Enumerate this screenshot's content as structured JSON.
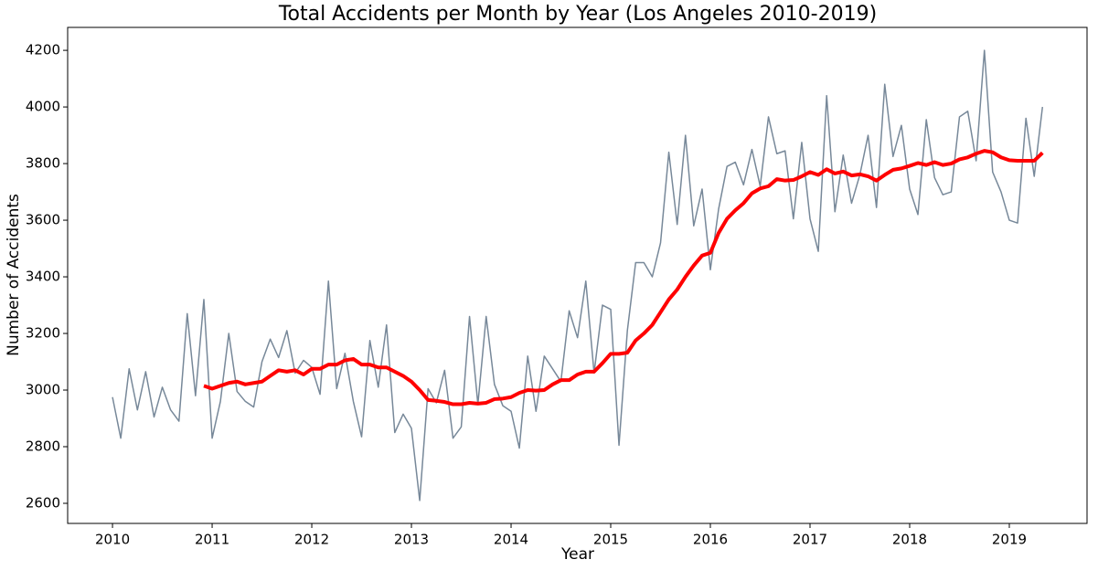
{
  "chart_data": {
    "type": "line",
    "title": "Total Accidents per Month by Year (Los Angeles 2010-2019)",
    "xlabel": "Year",
    "ylabel": "Number of Accidents",
    "x": [
      2010,
      2010.083,
      2010.167,
      2010.25,
      2010.333,
      2010.417,
      2010.5,
      2010.583,
      2010.667,
      2010.75,
      2010.833,
      2010.917,
      2011,
      2011.083,
      2011.167,
      2011.25,
      2011.333,
      2011.417,
      2011.5,
      2011.583,
      2011.667,
      2011.75,
      2011.833,
      2011.917,
      2012,
      2012.083,
      2012.167,
      2012.25,
      2012.333,
      2012.417,
      2012.5,
      2012.583,
      2012.667,
      2012.75,
      2012.833,
      2012.917,
      2013,
      2013.083,
      2013.167,
      2013.25,
      2013.333,
      2013.417,
      2013.5,
      2013.583,
      2013.667,
      2013.75,
      2013.833,
      2013.917,
      2014,
      2014.083,
      2014.167,
      2014.25,
      2014.333,
      2014.417,
      2014.5,
      2014.583,
      2014.667,
      2014.75,
      2014.833,
      2014.917,
      2015,
      2015.083,
      2015.167,
      2015.25,
      2015.333,
      2015.417,
      2015.5,
      2015.583,
      2015.667,
      2015.75,
      2015.833,
      2015.917,
      2016,
      2016.083,
      2016.167,
      2016.25,
      2016.333,
      2016.417,
      2016.5,
      2016.583,
      2016.667,
      2016.75,
      2016.833,
      2016.917,
      2017,
      2017.083,
      2017.167,
      2017.25,
      2017.333,
      2017.417,
      2017.5,
      2017.583,
      2017.667,
      2017.75,
      2017.833,
      2017.917,
      2018,
      2018.083,
      2018.167,
      2018.25,
      2018.333,
      2018.417,
      2018.5,
      2018.583,
      2018.667,
      2018.75,
      2018.833,
      2018.917,
      2019,
      2019.083,
      2019.167,
      2019.25,
      2019.333
    ],
    "series": [
      {
        "color": "#778899",
        "width": 1.5,
        "values": [
          2975,
          2830,
          3075,
          2930,
          3065,
          2905,
          3010,
          2930,
          2890,
          3270,
          2980,
          3320,
          2830,
          2960,
          3200,
          2995,
          2960,
          2940,
          3100,
          3180,
          3115,
          3210,
          3060,
          3105,
          3080,
          2985,
          3385,
          3005,
          3130,
          2960,
          2835,
          3175,
          3010,
          3230,
          2850,
          2915,
          2865,
          2610,
          3005,
          2955,
          3070,
          2830,
          2870,
          3260,
          2950,
          3260,
          3020,
          2945,
          2925,
          2795,
          3120,
          2925,
          3120,
          3075,
          3030,
          3280,
          3185,
          3385,
          3060,
          3300,
          3285,
          2805,
          3210,
          3450,
          3450,
          3400,
          3520,
          3840,
          3585,
          3900,
          3580,
          3710,
          3425,
          3640,
          3790,
          3805,
          3725,
          3850,
          3720,
          3965,
          3835,
          3845,
          3605,
          3875,
          3605,
          3490,
          4040,
          3630,
          3830,
          3660,
          3760,
          3900,
          3645,
          4080,
          3825,
          3935,
          3710,
          3620,
          3955,
          3750,
          3690,
          3700,
          3965,
          3985,
          3810,
          4200,
          3770,
          3700,
          3600,
          3590,
          3960,
          3755,
          4000
        ]
      },
      {
        "color": "#ff0000",
        "width": 4,
        "values": [
          null,
          null,
          null,
          null,
          null,
          null,
          null,
          null,
          null,
          null,
          null,
          3015,
          3005,
          3015,
          3025,
          3030,
          3020,
          3025,
          3030,
          3050,
          3070,
          3065,
          3070,
          3055,
          3075,
          3075,
          3090,
          3090,
          3105,
          3110,
          3090,
          3090,
          3080,
          3080,
          3065,
          3050,
          3030,
          3000,
          2965,
          2962,
          2958,
          2950,
          2950,
          2955,
          2952,
          2955,
          2968,
          2970,
          2975,
          2990,
          3000,
          2998,
          3000,
          3020,
          3035,
          3035,
          3055,
          3065,
          3065,
          3095,
          3128,
          3128,
          3132,
          3175,
          3200,
          3230,
          3275,
          3320,
          3355,
          3400,
          3440,
          3475,
          3485,
          3555,
          3605,
          3635,
          3660,
          3695,
          3712,
          3720,
          3745,
          3740,
          3742,
          3755,
          3770,
          3760,
          3780,
          3765,
          3772,
          3758,
          3762,
          3755,
          3740,
          3760,
          3778,
          3783,
          3792,
          3802,
          3795,
          3805,
          3795,
          3800,
          3815,
          3822,
          3835,
          3845,
          3840,
          3822,
          3812,
          3810,
          3810,
          3810,
          3838
        ]
      }
    ],
    "xlim": [
      2009.55,
      2019.78
    ],
    "xticks": [
      2010,
      2011,
      2012,
      2013,
      2014,
      2015,
      2016,
      2017,
      2018,
      2019
    ],
    "ylim": [
      2529,
      4281
    ],
    "yticks": [
      2600,
      2800,
      3000,
      3200,
      3400,
      3600,
      3800,
      4000,
      4200
    ]
  }
}
